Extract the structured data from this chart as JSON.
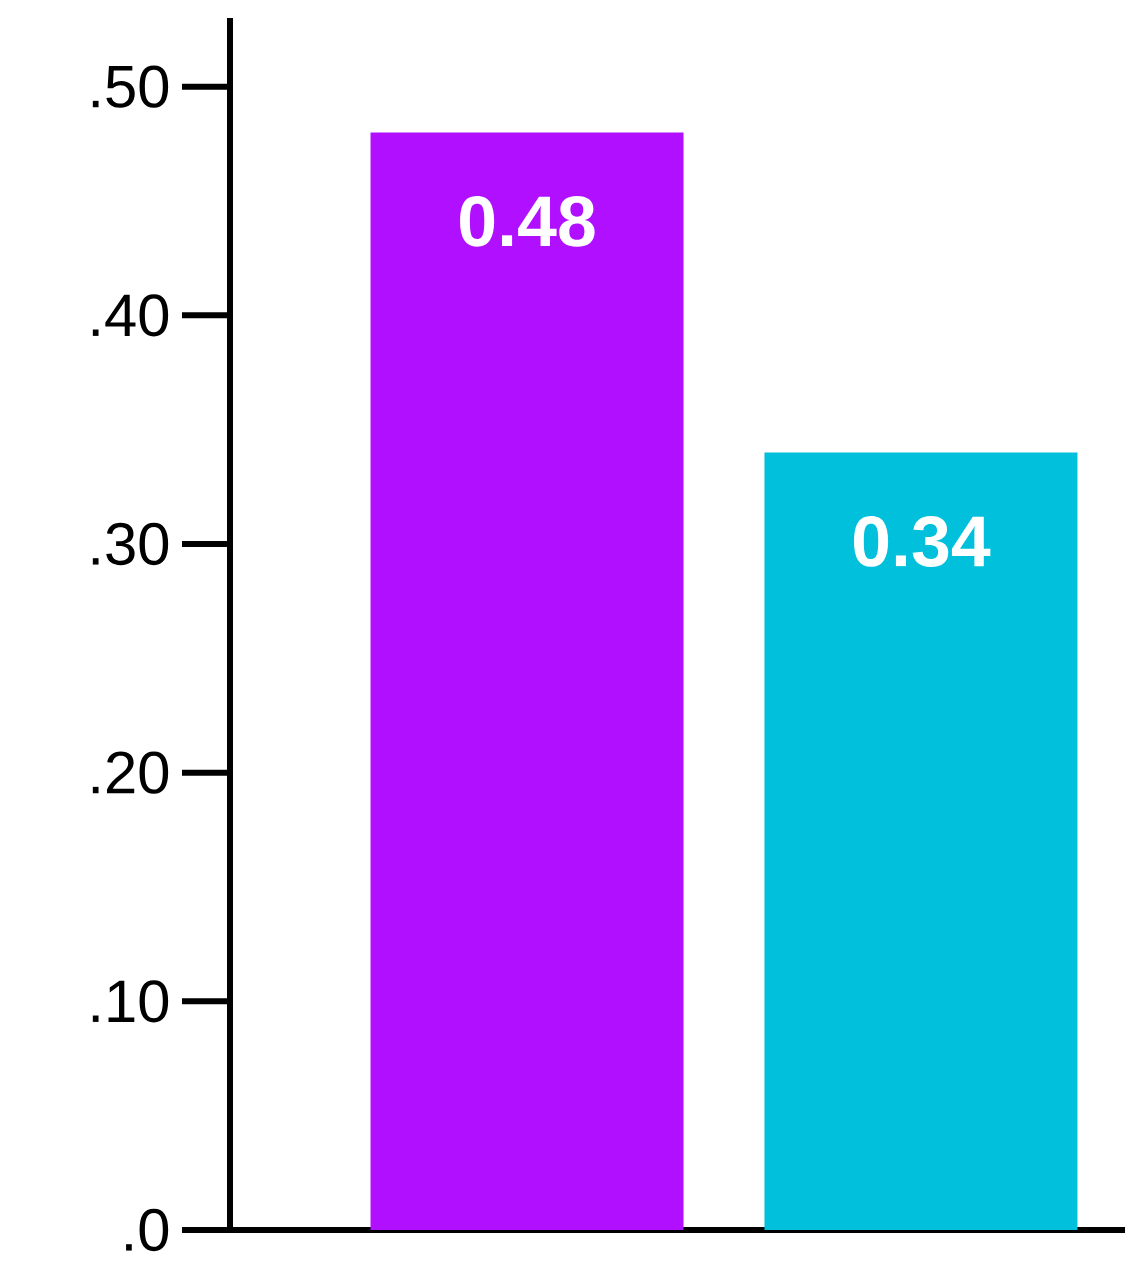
{
  "chart_data": {
    "type": "bar",
    "categories": [
      null,
      null
    ],
    "values": [
      0.48,
      0.34
    ],
    "colors": [
      "#b010ff",
      "#00c0dc"
    ],
    "ylim": [
      0,
      0.53
    ],
    "yticks": [
      {
        "value": 0,
        "label": ".0"
      },
      {
        "value": 0.1,
        "label": ".10"
      },
      {
        "value": 0.2,
        "label": ".20"
      },
      {
        "value": 0.3,
        "label": ".30"
      },
      {
        "value": 0.4,
        "label": ".40"
      },
      {
        "value": 0.5,
        "label": ".50"
      }
    ],
    "data_labels": true
  }
}
